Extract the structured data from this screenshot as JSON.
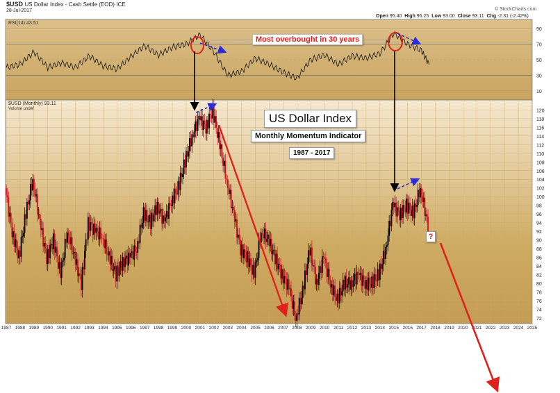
{
  "header": {
    "symbol": "$USD",
    "name": "US Dollar Index - Cash Settle (EOD)",
    "exchange": "ICE",
    "date": "28-Jul-2017",
    "open_label": "Open",
    "open": "95.40",
    "high_label": "High",
    "high": "96.25",
    "low_label": "Low",
    "low": "93.00",
    "close_label": "Close",
    "close": "93.11",
    "chg_label": "Chg",
    "chg": "-2.31 (-2.42%)",
    "copyright": "© StockCharts.com"
  },
  "rsi_panel": {
    "label": "RSI(14) 43.51",
    "levels": [
      "90",
      "70",
      "50",
      "30",
      "10"
    ]
  },
  "price_panel": {
    "label": "$USD (Monthly) 93.11",
    "volume_label": "Volume undef"
  },
  "annotations": {
    "overbought": "Most overbought in 30 years",
    "title": "US Dollar Index",
    "subtitle": "Monthly Momentum Indicator",
    "range": "1987 - 2017",
    "question": "?"
  },
  "colors": {
    "background_top": "#f6e8d0",
    "background_mid": "#ceab62",
    "up_candle": "#000000",
    "down_candle": "#d01020",
    "arrow_red": "#e0211b",
    "arrow_blue": "#2b2bd8",
    "circle_red": "#e0211b"
  },
  "chart_data": [
    {
      "type": "line",
      "title": "RSI(14)",
      "ylim": [
        0,
        100
      ],
      "y_ticks": [
        10,
        30,
        50,
        70,
        90
      ],
      "grid": true,
      "x": [
        1987,
        1988,
        1989,
        1990,
        1991,
        1992,
        1993,
        1994,
        1995,
        1996,
        1997,
        1998,
        1999,
        2000,
        2001,
        2002,
        2003,
        2004,
        2005,
        2006,
        2007,
        2008,
        2009,
        2010,
        2011,
        2012,
        2013,
        2014,
        2015,
        2016,
        2017,
        2017.55
      ],
      "series": [
        {
          "name": "RSI(14)",
          "values": [
            40,
            44,
            60,
            40,
            46,
            40,
            55,
            42,
            38,
            54,
            68,
            56,
            66,
            70,
            82,
            60,
            30,
            35,
            52,
            44,
            34,
            26,
            50,
            56,
            44,
            55,
            52,
            58,
            84,
            70,
            62,
            43.51
          ]
        }
      ]
    },
    {
      "type": "bar",
      "title": "$USD (Monthly) 93.11",
      "xlim": [
        1987,
        2025
      ],
      "ylim": [
        71,
        122
      ],
      "x_ticks": [
        "1987",
        "1988",
        "1989",
        "1990",
        "1991",
        "1992",
        "1993",
        "1994",
        "1995",
        "1996",
        "1997",
        "1998",
        "1999",
        "2000",
        "2001",
        "2002",
        "2003",
        "2004",
        "2005",
        "2006",
        "2007",
        "2008",
        "2009",
        "2010",
        "2011",
        "2012",
        "2013",
        "2014",
        "2015",
        "2016",
        "2017",
        "2018",
        "2019",
        "2020",
        "2021",
        "2022",
        "2023",
        "2024",
        "2025"
      ],
      "y_ticks": [
        72,
        74,
        76,
        78,
        80,
        82,
        84,
        86,
        88,
        90,
        92,
        94,
        96,
        98,
        100,
        102,
        104,
        106,
        108,
        110,
        112,
        114,
        116,
        118,
        120
      ],
      "grid": true,
      "x": [
        1987,
        1987.5,
        1988,
        1988.5,
        1989,
        1989.5,
        1990,
        1990.5,
        1991,
        1991.5,
        1992,
        1992.5,
        1993,
        1993.5,
        1994,
        1994.5,
        1995,
        1995.5,
        1996,
        1996.5,
        1997,
        1997.5,
        1998,
        1998.5,
        1999,
        1999.5,
        2000,
        2000.5,
        2001,
        2001.5,
        2002,
        2002.5,
        2003,
        2003.5,
        2004,
        2004.5,
        2005,
        2005.5,
        2006,
        2006.5,
        2007,
        2007.5,
        2008,
        2008.5,
        2009,
        2009.5,
        2010,
        2010.5,
        2011,
        2011.5,
        2012,
        2012.5,
        2013,
        2013.5,
        2014,
        2014.5,
        2015,
        2015.5,
        2016,
        2016.5,
        2017,
        2017.55
      ],
      "series": [
        {
          "name": "$USD",
          "values": [
            102,
            92,
            86,
            96,
            104,
            94,
            86,
            90,
            82,
            92,
            86,
            80,
            94,
            92,
            91,
            86,
            82,
            85,
            86,
            88,
            96,
            94,
            98,
            94,
            99,
            102,
            108,
            114,
            118,
            116,
            120,
            112,
            104,
            96,
            88,
            86,
            82,
            92,
            90,
            86,
            82,
            79,
            72,
            78,
            88,
            80,
            86,
            80,
            76,
            80,
            80,
            82,
            80,
            80,
            82,
            88,
            98,
            96,
            98,
            96,
            102,
            93.11
          ]
        }
      ]
    }
  ]
}
